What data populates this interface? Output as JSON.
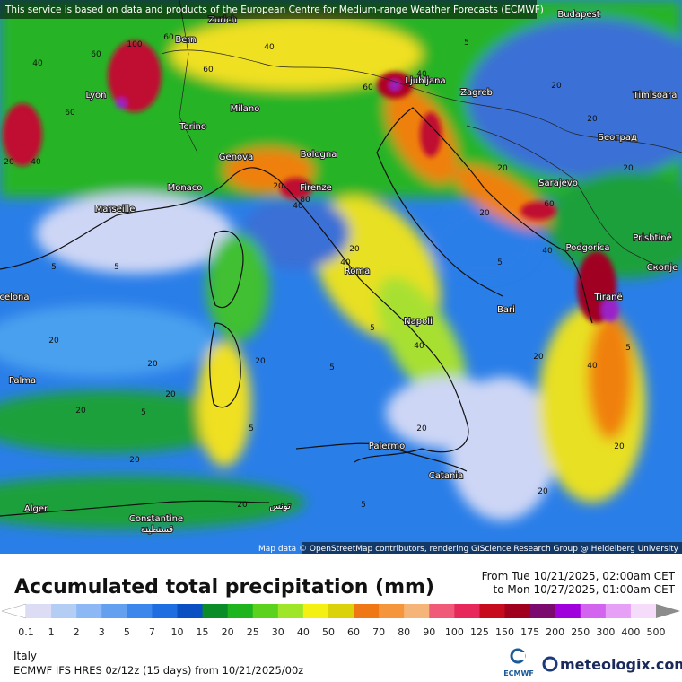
{
  "header": {
    "notice": "This service is based on data and products of the European Centre for Medium-range Weather Forecasts (ECMWF)"
  },
  "map": {
    "attribution": "Map data © OpenStreetMap contributors, rendering GIScience Research Group @ Heidelberg University",
    "cities": [
      "Zurich",
      "Bern",
      "Budapest",
      "Lyon",
      "Milano",
      "Ljubljana",
      "Zagreb",
      "Timisoara",
      "Torino",
      "Београд",
      "Genova",
      "Bologna",
      "Monaco",
      "Firenze",
      "Sarajevo",
      "Marseille",
      "Prishtinë",
      "Podgorica",
      "Скопје",
      "Roma",
      "Tiranë",
      "celona",
      "Bari",
      "Napoli",
      "Palma",
      "Palermo",
      "Catania",
      "Alger",
      "تونس",
      "Constantine",
      "قسنطينة"
    ],
    "contour_labels": [
      "40",
      "60",
      "100",
      "60",
      "40",
      "60",
      "60",
      "20",
      "40",
      "80",
      "40",
      "40",
      "20",
      "5",
      "20",
      "5",
      "5",
      "40",
      "60",
      "20",
      "5",
      "20",
      "20",
      "60",
      "20",
      "5",
      "20",
      "5",
      "20",
      "20",
      "20",
      "40",
      "20",
      "5",
      "5",
      "20",
      "20",
      "20",
      "5",
      "20",
      "40",
      "20",
      "40",
      "20",
      "5",
      "20"
    ]
  },
  "footer": {
    "title": "Accumulated total precipitation (mm)",
    "period_from": "From Tue 10/21/2025, 02:00am CET",
    "period_to": "to Mon 10/27/2025, 01:00am CET",
    "colorbar_labels": [
      "0.1",
      "1",
      "2",
      "3",
      "5",
      "7",
      "10",
      "15",
      "20",
      "25",
      "30",
      "40",
      "50",
      "60",
      "70",
      "80",
      "90",
      "100",
      "125",
      "150",
      "175",
      "200",
      "250",
      "300",
      "400",
      "500"
    ],
    "colorbar_colors": [
      "#ffffff",
      "#dcdcf5",
      "#b4cdf5",
      "#8cb9f5",
      "#64a0f0",
      "#3c87eb",
      "#1e6ee1",
      "#0a50c3",
      "#0a8c28",
      "#1eb41e",
      "#5ad21e",
      "#a0e628",
      "#f5f014",
      "#dcd20a",
      "#f07814",
      "#f5963c",
      "#f5b478",
      "#f05a78",
      "#e6285a",
      "#c80a1e",
      "#a0001e",
      "#7a0a6e",
      "#a000dc",
      "#d264f0",
      "#e6a0f5",
      "#f5dcfa",
      "#d2d2d2",
      "#8c8c8c"
    ],
    "region": "Italy",
    "model": "ECMWF IFS HRES 0z/12z (15 days) from 10/21/2025/00z",
    "ecmwf_logo": "ECMWF",
    "brand": "meteologix.com"
  }
}
